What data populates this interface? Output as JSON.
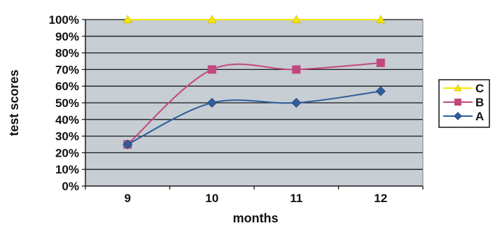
{
  "chart_data": {
    "type": "line",
    "title": "",
    "xlabel": "months",
    "ylabel": "test scores",
    "categories": [
      "9",
      "10",
      "11",
      "12"
    ],
    "y_ticks": [
      "0%",
      "10%",
      "20%",
      "30%",
      "40%",
      "50%",
      "60%",
      "70%",
      "80%",
      "90%",
      "100%"
    ],
    "ylim": [
      0,
      100
    ],
    "grid": true,
    "legend_position": "right",
    "plot_background": "#c6cdd3",
    "series": [
      {
        "name": "C",
        "values": [
          100,
          100,
          100,
          100
        ],
        "color": "#f6e600",
        "marker": "triangle"
      },
      {
        "name": "B",
        "values": [
          25,
          70,
          70,
          74
        ],
        "color": "#c2477e",
        "marker": "square"
      },
      {
        "name": "A",
        "values": [
          25,
          50,
          50,
          57
        ],
        "color": "#2f5e9a",
        "marker": "diamond"
      }
    ]
  }
}
